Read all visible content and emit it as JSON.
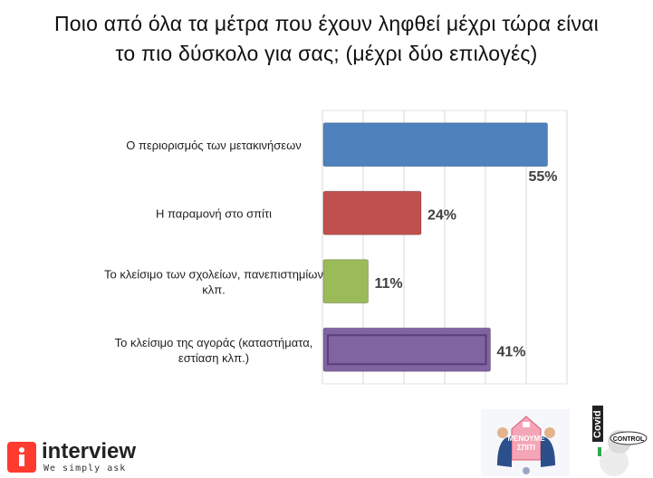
{
  "title_lines": [
    "Ποιο από όλα τα μέτρα που έχουν ληφθεί μέχρι τώρα είναι",
    "το πιο δύσκολο για σας; (μέχρι δύο επιλογές)"
  ],
  "chart_data": {
    "type": "bar",
    "orientation": "horizontal",
    "categories": [
      [
        "Ο περιορισμός των μετακινήσεων"
      ],
      [
        "Η παραμονή στο σπίτι"
      ],
      [
        "Το κλείσιμο των σχολείων, πανεπιστημίων",
        "κλπ."
      ],
      [
        "Το κλείσιμο της αγοράς (καταστήματα,",
        "εστίαση κλπ.)"
      ]
    ],
    "values": [
      55,
      24,
      11,
      41
    ],
    "value_labels": [
      "55%",
      "24%",
      "11%",
      "41%"
    ],
    "bar_colors": [
      "#4f81bd",
      "#c0504d",
      "#9bbb59",
      "#8064a2"
    ],
    "xlim": [
      0,
      60
    ],
    "grid": true,
    "legend": "none"
  },
  "logos": {
    "company_name": "interview",
    "company_tagline": "We simply ask",
    "campaign_text": [
      "ΜΕΝΟΥΜΕ",
      "ΣΠΙΤΙ"
    ],
    "covid_text": [
      "Covid",
      "CONTROL"
    ]
  }
}
